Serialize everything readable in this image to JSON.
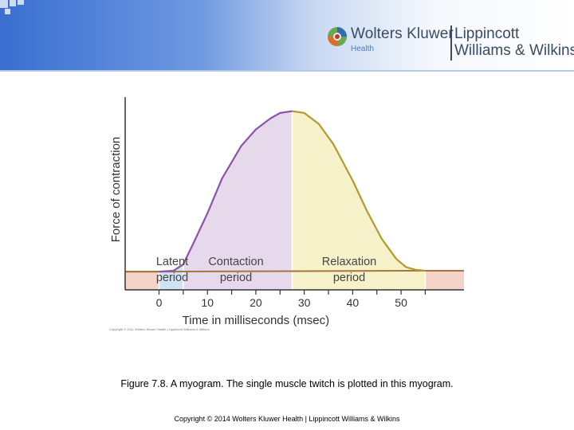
{
  "header": {
    "brand_name": "Wolters Kluwer",
    "brand_sub": "Health",
    "imprint_line1": "Lippincott",
    "imprint_line2": "Williams & Wilkins",
    "gradient_start": "#3a6fd0",
    "logo_icon": "wolters-kluwer-globe-icon"
  },
  "chart_data": {
    "type": "area",
    "xlabel": "Time in milliseconds (msec)",
    "ylabel": "Force of contraction",
    "x_ticks": [
      0,
      10,
      20,
      30,
      40,
      50
    ],
    "xlim": [
      -7,
      63
    ],
    "ylim": [
      0,
      10
    ],
    "grid": false,
    "series": [
      {
        "x": [
          -7,
          0,
          3,
          5,
          7,
          10,
          13,
          17,
          20,
          23,
          25,
          27.5,
          30,
          33,
          36,
          40,
          43,
          46,
          49,
          51,
          53,
          55,
          63
        ],
        "y": [
          1,
          1,
          1.05,
          1.4,
          2.5,
          4.2,
          6.1,
          7.9,
          8.8,
          9.4,
          9.7,
          9.8,
          9.7,
          9.1,
          8.0,
          6.0,
          4.3,
          2.8,
          1.7,
          1.25,
          1.1,
          1.05,
          1.05
        ]
      }
    ],
    "regions": [
      {
        "label": "",
        "label_line1": "",
        "label_line2": "",
        "x_start": -7,
        "x_end": 0,
        "color": "#f6d3ca"
      },
      {
        "label": "Latent period",
        "label_line1": "Latent",
        "label_line2": "period",
        "x_start": 0,
        "x_end": 5,
        "color": "#cfe3f2"
      },
      {
        "label": "Contaction period",
        "label_line1": "Contaction",
        "label_line2": "period",
        "x_start": 5,
        "x_end": 27.5,
        "color": "#e7d9ec"
      },
      {
        "label": "Relaxation period",
        "label_line1": "Relaxation",
        "label_line2": "period",
        "x_start": 27.5,
        "x_end": 55,
        "color": "#f6f1c8"
      },
      {
        "label": "",
        "label_line1": "",
        "label_line2": "",
        "x_start": 55,
        "x_end": 63,
        "color": "#f6d3ca"
      }
    ],
    "line_colors": {
      "contraction": "#8a55a8",
      "relaxation": "#b39a2c",
      "baseline": "#a57540"
    }
  },
  "copyright_small": "Copyright © 2011 Wolters Kluwer Health | Lippincott Williams & Wilkins",
  "caption": {
    "bold": "Figure 7.8. A myogram",
    "rest": ". The single muscle twitch is plotted in this myogram."
  },
  "footer": "Copyright © 2014 Wolters Kluwer Health | Lippincott Williams & Wilkins"
}
